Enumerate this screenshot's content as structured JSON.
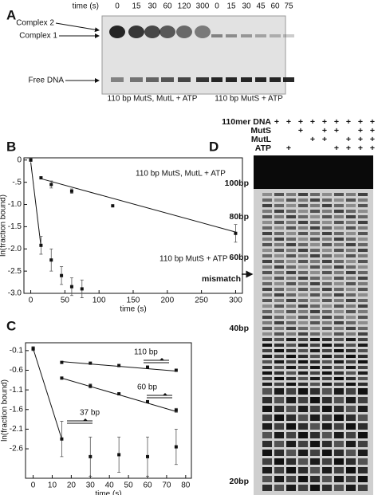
{
  "panel_a": {
    "label": "A",
    "time_label": "time (s)",
    "times_1": [
      "0",
      "15",
      "30",
      "60",
      "120",
      "300"
    ],
    "times_2": [
      "0",
      "15",
      "30",
      "45",
      "60",
      "75"
    ],
    "bands": [
      "Complex 2",
      "Complex 1",
      "Free DNA"
    ],
    "lane_groups": [
      "110 bp MutS, MutL + ATP",
      "110 bp MutS + ATP"
    ]
  },
  "panel_d": {
    "label": "D",
    "rows": [
      {
        "name": "110mer DNA",
        "marks": [
          "+",
          "+",
          "+",
          "+",
          "+",
          "+",
          "+",
          "+",
          "+"
        ]
      },
      {
        "name": "MutS",
        "marks": [
          null,
          null,
          "+",
          null,
          "+",
          "+",
          null,
          "+",
          "+"
        ]
      },
      {
        "name": "MutL",
        "marks": [
          null,
          null,
          null,
          "+",
          "+",
          null,
          "+",
          "+",
          "+"
        ]
      },
      {
        "name": "ATP",
        "marks": [
          null,
          "+",
          null,
          null,
          null,
          "+",
          "+",
          "+",
          "+"
        ]
      }
    ],
    "size_markers": [
      "100bp",
      "80bp",
      "60bp",
      "mismatch",
      "40bp",
      "20bp"
    ]
  },
  "chart_data": [
    {
      "type": "scatter",
      "label": "B",
      "xlabel": "time (s)",
      "ylabel": "ln(fraction bound)",
      "xlim": [
        -10,
        310
      ],
      "ylim": [
        -3.0,
        0.05
      ],
      "xticks": [
        0,
        50,
        100,
        150,
        200,
        250,
        300
      ],
      "yticks": [
        0,
        {
          "value": -0.5,
          "label": "-.5"
        },
        {
          "value": -1.0,
          "label": "-1.0"
        },
        {
          "value": -1.5,
          "label": "-1.5"
        },
        {
          "value": -2.0,
          "label": "-2.0"
        },
        {
          "value": -2.5,
          "label": "-2.5"
        },
        {
          "value": -3.0,
          "label": "-3.0"
        }
      ],
      "series": [
        {
          "name": "110 bp MutS, MutL + ATP",
          "color": "#111111",
          "x": [
            0,
            15,
            30,
            60,
            120,
            300
          ],
          "values": [
            0,
            -0.4,
            -0.55,
            -0.7,
            -1.03,
            -1.65
          ],
          "errors": [
            null,
            null,
            0.08,
            0.05,
            null,
            0.2
          ],
          "fit": {
            "x": [
              15,
              300
            ],
            "y": [
              -0.42,
              -1.62
            ]
          }
        },
        {
          "name": "110 bp MutS + ATP",
          "color": "#111111",
          "x": [
            0,
            15,
            30,
            45,
            60,
            75
          ],
          "values": [
            0,
            -1.92,
            -2.25,
            -2.6,
            -2.85,
            -2.9
          ],
          "errors": [
            null,
            0.2,
            0.25,
            0.2,
            0.2,
            0.2
          ],
          "fit": {
            "x": [
              0,
              15
            ],
            "y": [
              -0.05,
              -1.95
            ]
          }
        }
      ]
    },
    {
      "type": "scatter",
      "label": "C",
      "xlabel": "time (s)",
      "ylabel": "ln(fraction bound)",
      "xlim": [
        -4,
        83
      ],
      "ylim": [
        -3.35,
        0.1
      ],
      "xticks": [
        0,
        10,
        20,
        30,
        40,
        50,
        60,
        70,
        80
      ],
      "yticks": [
        -0.1,
        -0.6,
        -1.1,
        -1.6,
        -2.1,
        -2.6
      ],
      "series": [
        {
          "name": "110 bp",
          "color": "#111111",
          "x": [
            0,
            15,
            30,
            45,
            60,
            75
          ],
          "values": [
            -0.05,
            -0.4,
            -0.42,
            -0.48,
            -0.52,
            -0.6
          ],
          "errors": [
            0.05,
            null,
            null,
            null,
            null,
            null
          ],
          "fit": {
            "x": [
              15,
              75
            ],
            "y": [
              -0.38,
              -0.62
            ]
          }
        },
        {
          "name": "60 bp",
          "color": "#111111",
          "x": [
            0,
            15,
            30,
            45,
            60,
            75
          ],
          "values": [
            -0.05,
            -0.8,
            -1.0,
            -1.2,
            -1.4,
            -1.62
          ],
          "errors": [
            null,
            null,
            0.05,
            null,
            null,
            0.05
          ],
          "fit": {
            "x": [
              15,
              75
            ],
            "y": [
              -0.8,
              -1.65
            ]
          }
        },
        {
          "name": "37 bp",
          "color": "#111111",
          "x": [
            0,
            15,
            30,
            45,
            60,
            75
          ],
          "values": [
            -0.05,
            -2.35,
            -2.8,
            -2.75,
            -2.8,
            -2.55
          ],
          "errors": [
            null,
            0.45,
            0.5,
            0.45,
            0.5,
            0.45
          ],
          "fit": {
            "x": [
              0,
              15
            ],
            "y": [
              -0.05,
              -2.35
            ]
          }
        }
      ]
    }
  ]
}
